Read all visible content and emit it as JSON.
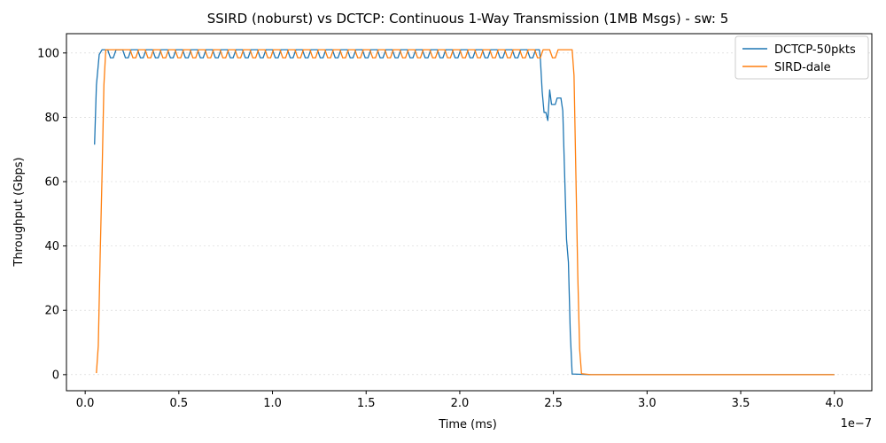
{
  "chart_data": {
    "type": "line",
    "title": "SSIRD (noburst) vs DCTCP: Continuous 1-Way Transmission (1MB Msgs) - sw: 5",
    "xlabel": "Time (ms)",
    "ylabel": "Throughput (Gbps)",
    "x_offset_label": "1e−7",
    "xlim": [
      -0.1,
      4.2
    ],
    "ylim": [
      -5,
      106
    ],
    "x_ticks": [
      0.0,
      0.5,
      1.0,
      1.5,
      2.0,
      2.5,
      3.0,
      3.5,
      4.0
    ],
    "x_tick_labels": [
      "0.0",
      "0.5",
      "1.0",
      "1.5",
      "2.0",
      "2.5",
      "3.0",
      "3.5",
      "4.0"
    ],
    "y_ticks": [
      0,
      20,
      40,
      60,
      80,
      100
    ],
    "y_tick_labels": [
      "0",
      "20",
      "40",
      "60",
      "80",
      "100"
    ],
    "grid": "horizontal-dotted",
    "legend_position": "top-right",
    "series": [
      {
        "name": "DCTCP-50pkts",
        "color": "#1f77b4",
        "points": [
          [
            0.05,
            71.5
          ],
          [
            0.06,
            90.0
          ],
          [
            0.075,
            99.5
          ],
          [
            0.09,
            101.0
          ],
          [
            0.1,
            101.0
          ],
          [
            0.11,
            101.0
          ],
          [
            0.12,
            101.0
          ],
          [
            0.135,
            98.5
          ],
          [
            0.15,
            98.5
          ],
          [
            0.165,
            101.0
          ],
          [
            0.2,
            101.0
          ],
          [
            0.215,
            98.5
          ],
          [
            0.23,
            98.5
          ],
          [
            0.245,
            101.0
          ],
          [
            0.28,
            101.0
          ],
          [
            0.295,
            98.5
          ],
          [
            0.31,
            98.5
          ],
          [
            0.325,
            101.0
          ],
          [
            0.36,
            101.0
          ],
          [
            0.375,
            98.5
          ],
          [
            0.39,
            98.5
          ],
          [
            0.405,
            101.0
          ],
          [
            0.44,
            101.0
          ],
          [
            0.455,
            98.5
          ],
          [
            0.47,
            98.5
          ],
          [
            0.485,
            101.0
          ],
          [
            0.52,
            101.0
          ],
          [
            0.535,
            98.5
          ],
          [
            0.55,
            98.5
          ],
          [
            0.565,
            101.0
          ],
          [
            0.6,
            101.0
          ],
          [
            0.615,
            98.5
          ],
          [
            0.63,
            98.5
          ],
          [
            0.645,
            101.0
          ],
          [
            0.68,
            101.0
          ],
          [
            0.695,
            98.5
          ],
          [
            0.71,
            98.5
          ],
          [
            0.725,
            101.0
          ],
          [
            0.76,
            101.0
          ],
          [
            0.775,
            98.5
          ],
          [
            0.79,
            98.5
          ],
          [
            0.805,
            101.0
          ],
          [
            0.84,
            101.0
          ],
          [
            0.855,
            98.5
          ],
          [
            0.87,
            98.5
          ],
          [
            0.885,
            101.0
          ],
          [
            0.92,
            101.0
          ],
          [
            0.935,
            98.5
          ],
          [
            0.95,
            98.5
          ],
          [
            0.965,
            101.0
          ],
          [
            1.0,
            101.0
          ],
          [
            1.015,
            98.5
          ],
          [
            1.03,
            98.5
          ],
          [
            1.045,
            101.0
          ],
          [
            1.08,
            101.0
          ],
          [
            1.095,
            98.5
          ],
          [
            1.11,
            98.5
          ],
          [
            1.125,
            101.0
          ],
          [
            1.16,
            101.0
          ],
          [
            1.175,
            98.5
          ],
          [
            1.19,
            98.5
          ],
          [
            1.205,
            101.0
          ],
          [
            1.24,
            101.0
          ],
          [
            1.255,
            98.5
          ],
          [
            1.27,
            98.5
          ],
          [
            1.285,
            101.0
          ],
          [
            1.32,
            101.0
          ],
          [
            1.335,
            98.5
          ],
          [
            1.35,
            98.5
          ],
          [
            1.365,
            101.0
          ],
          [
            1.4,
            101.0
          ],
          [
            1.415,
            98.5
          ],
          [
            1.43,
            98.5
          ],
          [
            1.445,
            101.0
          ],
          [
            1.48,
            101.0
          ],
          [
            1.495,
            98.5
          ],
          [
            1.51,
            98.5
          ],
          [
            1.525,
            101.0
          ],
          [
            1.56,
            101.0
          ],
          [
            1.575,
            98.5
          ],
          [
            1.59,
            98.5
          ],
          [
            1.605,
            101.0
          ],
          [
            1.64,
            101.0
          ],
          [
            1.655,
            98.5
          ],
          [
            1.67,
            98.5
          ],
          [
            1.685,
            101.0
          ],
          [
            1.72,
            101.0
          ],
          [
            1.735,
            98.5
          ],
          [
            1.75,
            98.5
          ],
          [
            1.765,
            101.0
          ],
          [
            1.8,
            101.0
          ],
          [
            1.815,
            98.5
          ],
          [
            1.83,
            98.5
          ],
          [
            1.845,
            101.0
          ],
          [
            1.88,
            101.0
          ],
          [
            1.895,
            98.5
          ],
          [
            1.91,
            98.5
          ],
          [
            1.925,
            101.0
          ],
          [
            1.96,
            101.0
          ],
          [
            1.975,
            98.5
          ],
          [
            1.99,
            98.5
          ],
          [
            2.005,
            101.0
          ],
          [
            2.04,
            101.0
          ],
          [
            2.055,
            98.5
          ],
          [
            2.07,
            98.5
          ],
          [
            2.085,
            101.0
          ],
          [
            2.12,
            101.0
          ],
          [
            2.135,
            98.5
          ],
          [
            2.15,
            98.5
          ],
          [
            2.165,
            101.0
          ],
          [
            2.2,
            101.0
          ],
          [
            2.215,
            98.5
          ],
          [
            2.23,
            98.5
          ],
          [
            2.245,
            101.0
          ],
          [
            2.28,
            101.0
          ],
          [
            2.295,
            98.5
          ],
          [
            2.31,
            98.5
          ],
          [
            2.325,
            101.0
          ],
          [
            2.36,
            101.0
          ],
          [
            2.375,
            98.5
          ],
          [
            2.39,
            98.5
          ],
          [
            2.405,
            101.0
          ],
          [
            2.425,
            101.0
          ],
          [
            2.43,
            98.5
          ],
          [
            2.44,
            88.0
          ],
          [
            2.45,
            81.5
          ],
          [
            2.46,
            81.5
          ],
          [
            2.47,
            79.0
          ],
          [
            2.48,
            88.5
          ],
          [
            2.49,
            84.0
          ],
          [
            2.5,
            84.0
          ],
          [
            2.51,
            84.0
          ],
          [
            2.52,
            86.0
          ],
          [
            2.54,
            86.0
          ],
          [
            2.55,
            82.0
          ],
          [
            2.56,
            62.0
          ],
          [
            2.57,
            42.0
          ],
          [
            2.58,
            35.0
          ],
          [
            2.59,
            13.0
          ],
          [
            2.6,
            0.2
          ],
          [
            2.7,
            0.0
          ],
          [
            3.0,
            0.0
          ],
          [
            3.5,
            0.0
          ],
          [
            4.0,
            0.0
          ]
        ]
      },
      {
        "name": "SIRD-dale",
        "color": "#ff7f0e",
        "points": [
          [
            0.06,
            0.5
          ],
          [
            0.07,
            9.0
          ],
          [
            0.08,
            37.0
          ],
          [
            0.09,
            62.0
          ],
          [
            0.1,
            90.0
          ],
          [
            0.11,
            101.0
          ],
          [
            0.24,
            101.0
          ],
          [
            0.255,
            98.5
          ],
          [
            0.27,
            98.5
          ],
          [
            0.285,
            101.0
          ],
          [
            0.32,
            101.0
          ],
          [
            0.335,
            98.5
          ],
          [
            0.35,
            98.5
          ],
          [
            0.365,
            101.0
          ],
          [
            0.4,
            101.0
          ],
          [
            0.415,
            98.5
          ],
          [
            0.43,
            98.5
          ],
          [
            0.445,
            101.0
          ],
          [
            0.48,
            101.0
          ],
          [
            0.495,
            98.5
          ],
          [
            0.51,
            98.5
          ],
          [
            0.525,
            101.0
          ],
          [
            0.56,
            101.0
          ],
          [
            0.575,
            98.5
          ],
          [
            0.59,
            98.5
          ],
          [
            0.605,
            101.0
          ],
          [
            0.64,
            101.0
          ],
          [
            0.655,
            98.5
          ],
          [
            0.67,
            98.5
          ],
          [
            0.685,
            101.0
          ],
          [
            0.72,
            101.0
          ],
          [
            0.735,
            98.5
          ],
          [
            0.75,
            98.5
          ],
          [
            0.765,
            101.0
          ],
          [
            0.8,
            101.0
          ],
          [
            0.815,
            98.5
          ],
          [
            0.83,
            98.5
          ],
          [
            0.845,
            101.0
          ],
          [
            0.88,
            101.0
          ],
          [
            0.895,
            98.5
          ],
          [
            0.91,
            98.5
          ],
          [
            0.925,
            101.0
          ],
          [
            0.96,
            101.0
          ],
          [
            0.975,
            98.5
          ],
          [
            0.99,
            98.5
          ],
          [
            1.005,
            101.0
          ],
          [
            1.04,
            101.0
          ],
          [
            1.055,
            98.5
          ],
          [
            1.07,
            98.5
          ],
          [
            1.085,
            101.0
          ],
          [
            1.12,
            101.0
          ],
          [
            1.135,
            98.5
          ],
          [
            1.15,
            98.5
          ],
          [
            1.165,
            101.0
          ],
          [
            1.2,
            101.0
          ],
          [
            1.215,
            98.5
          ],
          [
            1.23,
            98.5
          ],
          [
            1.245,
            101.0
          ],
          [
            1.28,
            101.0
          ],
          [
            1.295,
            98.5
          ],
          [
            1.31,
            98.5
          ],
          [
            1.325,
            101.0
          ],
          [
            1.36,
            101.0
          ],
          [
            1.375,
            98.5
          ],
          [
            1.39,
            98.5
          ],
          [
            1.405,
            101.0
          ],
          [
            1.44,
            101.0
          ],
          [
            1.455,
            98.5
          ],
          [
            1.47,
            98.5
          ],
          [
            1.485,
            101.0
          ],
          [
            1.52,
            101.0
          ],
          [
            1.535,
            98.5
          ],
          [
            1.55,
            98.5
          ],
          [
            1.565,
            101.0
          ],
          [
            1.6,
            101.0
          ],
          [
            1.615,
            98.5
          ],
          [
            1.63,
            98.5
          ],
          [
            1.645,
            101.0
          ],
          [
            1.68,
            101.0
          ],
          [
            1.695,
            98.5
          ],
          [
            1.71,
            98.5
          ],
          [
            1.725,
            101.0
          ],
          [
            1.76,
            101.0
          ],
          [
            1.775,
            98.5
          ],
          [
            1.79,
            98.5
          ],
          [
            1.805,
            101.0
          ],
          [
            1.84,
            101.0
          ],
          [
            1.855,
            98.5
          ],
          [
            1.87,
            98.5
          ],
          [
            1.885,
            101.0
          ],
          [
            1.92,
            101.0
          ],
          [
            1.935,
            98.5
          ],
          [
            1.95,
            98.5
          ],
          [
            1.965,
            101.0
          ],
          [
            2.0,
            101.0
          ],
          [
            2.015,
            98.5
          ],
          [
            2.03,
            98.5
          ],
          [
            2.045,
            101.0
          ],
          [
            2.08,
            101.0
          ],
          [
            2.095,
            98.5
          ],
          [
            2.11,
            98.5
          ],
          [
            2.125,
            101.0
          ],
          [
            2.16,
            101.0
          ],
          [
            2.175,
            98.5
          ],
          [
            2.19,
            98.5
          ],
          [
            2.205,
            101.0
          ],
          [
            2.24,
            101.0
          ],
          [
            2.255,
            98.5
          ],
          [
            2.27,
            98.5
          ],
          [
            2.285,
            101.0
          ],
          [
            2.32,
            101.0
          ],
          [
            2.335,
            98.5
          ],
          [
            2.35,
            98.5
          ],
          [
            2.365,
            101.0
          ],
          [
            2.4,
            101.0
          ],
          [
            2.415,
            98.5
          ],
          [
            2.43,
            98.5
          ],
          [
            2.445,
            101.0
          ],
          [
            2.48,
            101.0
          ],
          [
            2.495,
            98.5
          ],
          [
            2.51,
            98.5
          ],
          [
            2.525,
            101.0
          ],
          [
            2.6,
            101.0
          ],
          [
            2.61,
            93.0
          ],
          [
            2.62,
            62.0
          ],
          [
            2.63,
            31.0
          ],
          [
            2.64,
            8.0
          ],
          [
            2.65,
            0.3
          ],
          [
            2.7,
            0.0
          ],
          [
            3.0,
            0.0
          ],
          [
            3.5,
            0.0
          ],
          [
            4.0,
            0.0
          ]
        ]
      }
    ]
  }
}
